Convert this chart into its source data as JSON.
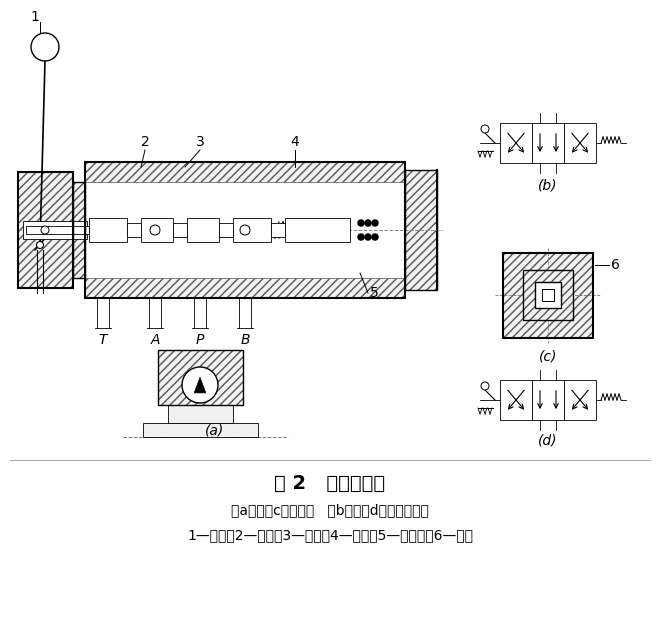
{
  "title": "图 2   手动换向阀",
  "subtitle1": "（a）、（c）结构图   （b）、（d）职能符号图",
  "subtitle2": "1—手柄；2—阀芯；3—阀体；4—弹簧；5—定位套；6—锂球",
  "label_a": "(a)",
  "label_b": "(b)",
  "label_c": "(c)",
  "label_d": "(d)",
  "bg_color": "#ffffff",
  "fig_width": 6.6,
  "fig_height": 6.41,
  "dpi": 100
}
